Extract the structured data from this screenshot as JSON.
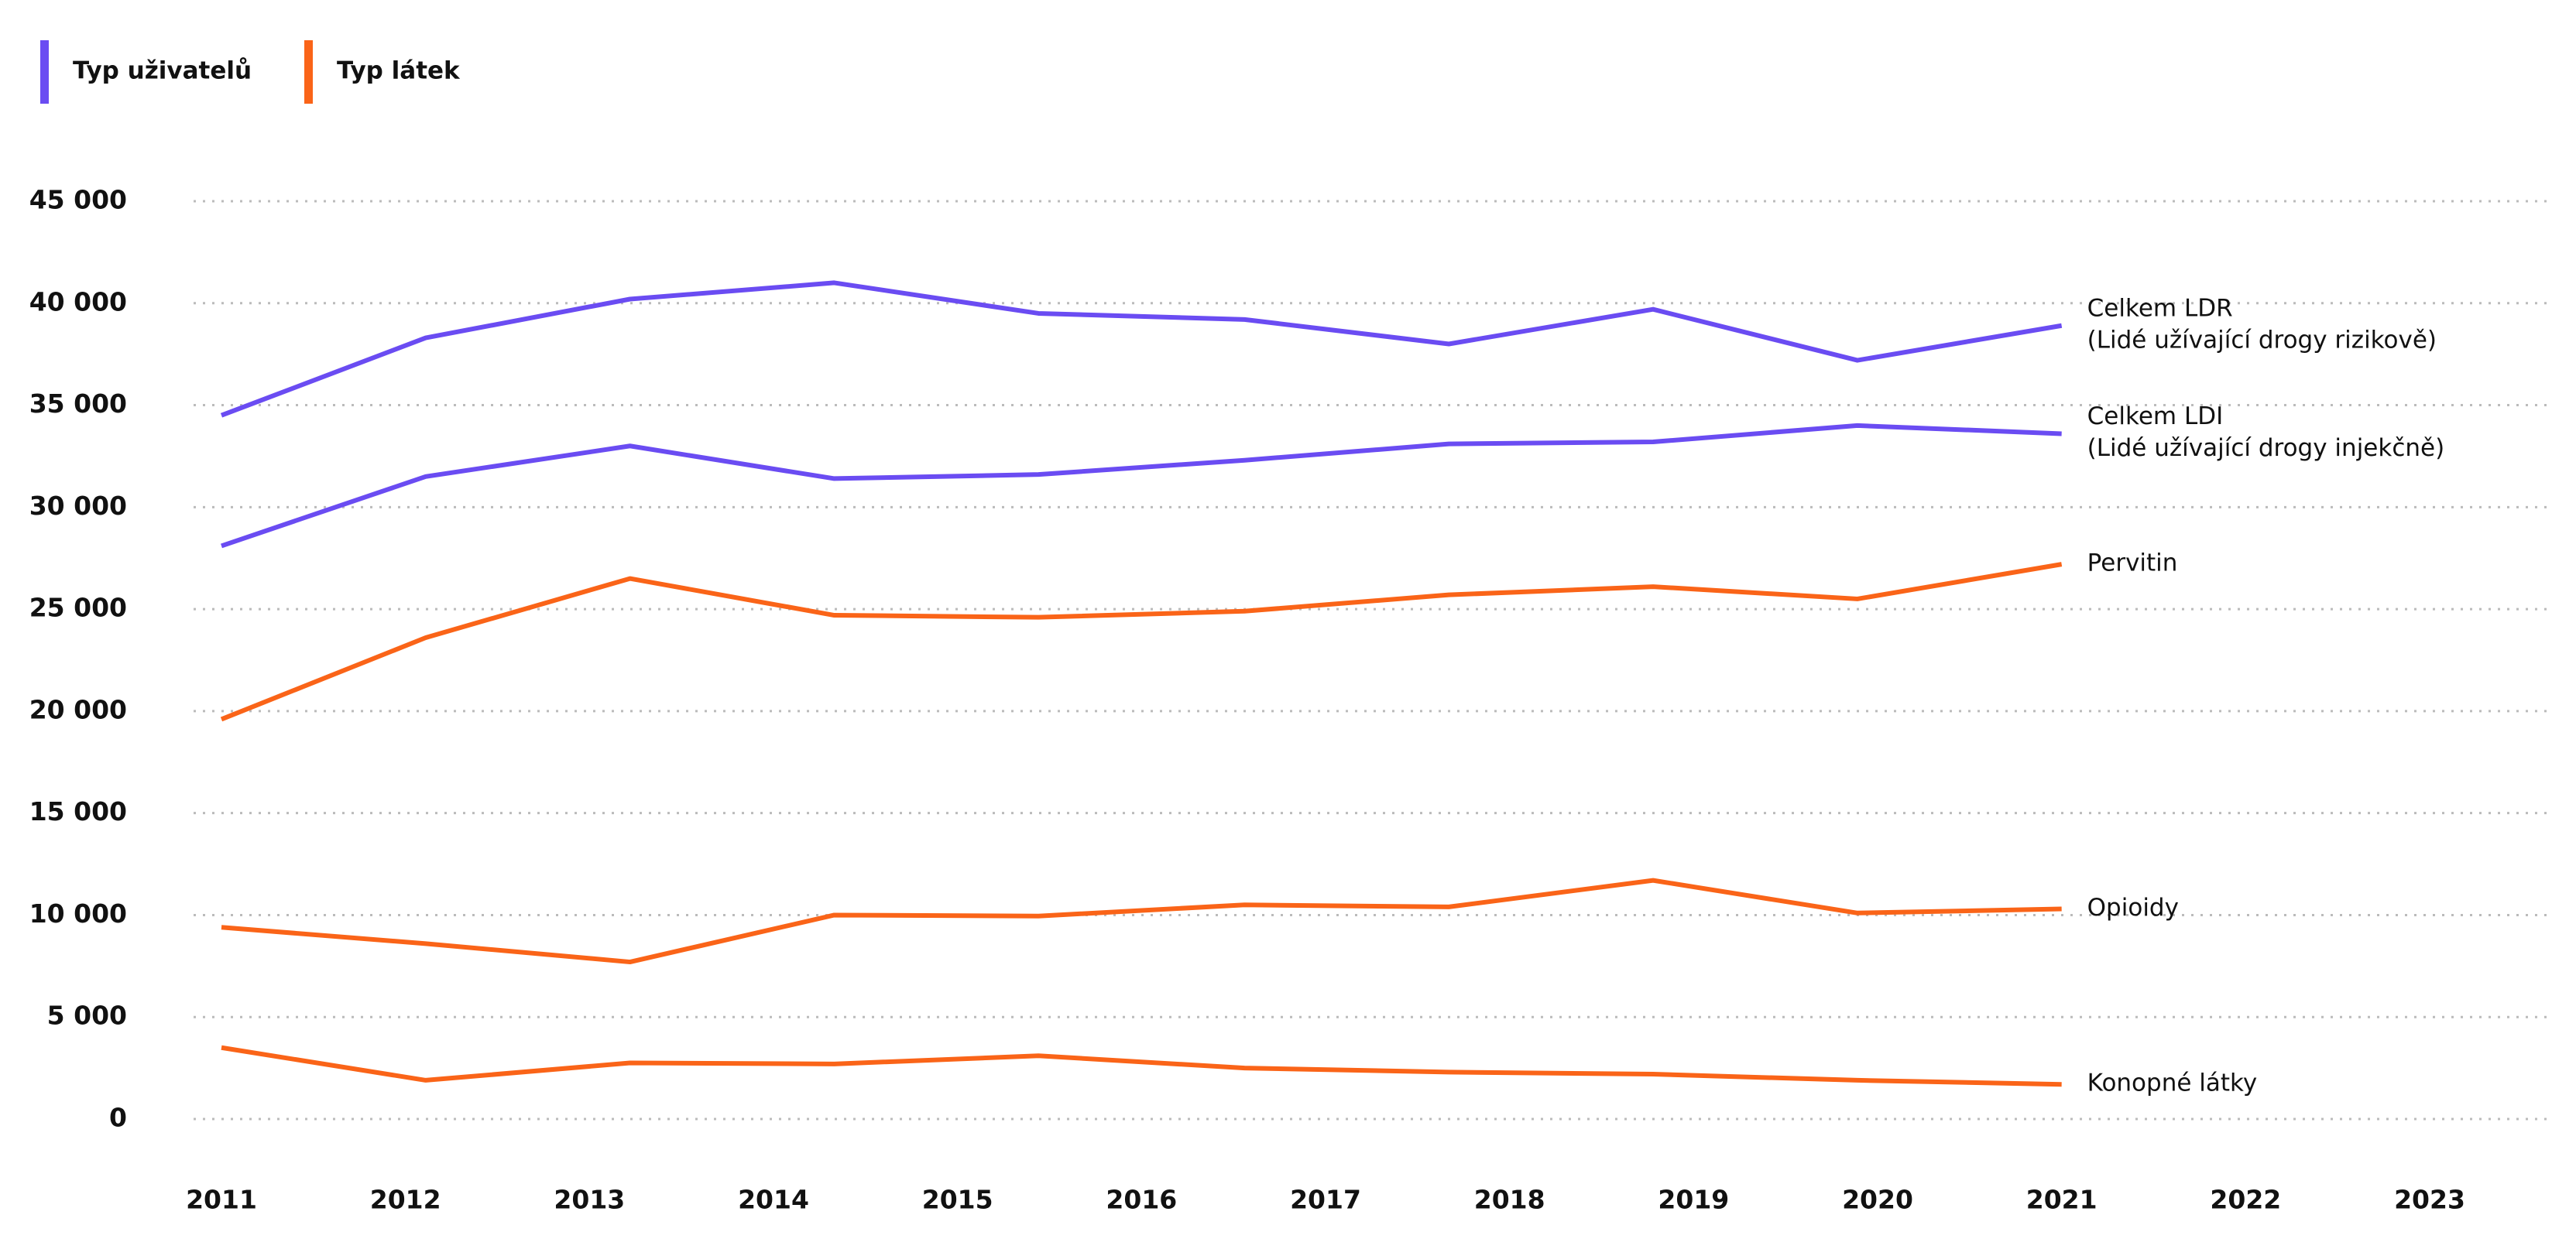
{
  "chart_data": {
    "type": "line",
    "legend": [
      {
        "name": "Typ uživatelů",
        "color": "#6a4cf2"
      },
      {
        "name": "Typ látek",
        "color": "#fa6418"
      }
    ],
    "xlim": [
      2011,
      2023
    ],
    "xticks": [
      2011,
      2012,
      2013,
      2014,
      2015,
      2016,
      2017,
      2018,
      2019,
      2020,
      2021,
      2022,
      2023
    ],
    "x": [
      2011,
      2012.11,
      2013.22,
      2014.33,
      2015.44,
      2016.56,
      2017.67,
      2018.78,
      2019.89,
      2021
    ],
    "ylim": [
      0,
      45000
    ],
    "yticks": [
      0,
      {
        "value": 5000,
        "label": "5 000"
      },
      {
        "value": 10000,
        "label": "10 000"
      },
      {
        "value": 15000,
        "label": "15 000"
      },
      {
        "value": 20000,
        "label": "20 000"
      },
      {
        "value": 25000,
        "label": "25 000"
      },
      {
        "value": 30000,
        "label": "30 000"
      },
      {
        "value": 35000,
        "label": "35 000"
      },
      {
        "value": 40000,
        "label": "40 000"
      },
      {
        "value": 45000,
        "label": "45 000"
      }
    ],
    "grid": true,
    "series": [
      {
        "name": "Celkem LDR",
        "description": "(Lidé užívající drogy rizikově)",
        "color": "#6a4cf2",
        "values": [
          34500,
          38300,
          40200,
          41000,
          39500,
          39200,
          38000,
          39700,
          37200,
          38900
        ]
      },
      {
        "name": "Celkem LDI",
        "description": "(Lidé užívající drogy injekčně)",
        "color": "#6a4cf2",
        "values": [
          28100,
          31500,
          33000,
          31400,
          31600,
          32300,
          33100,
          33200,
          34000,
          33600
        ]
      },
      {
        "name": "Pervitin",
        "color": "#fa6418",
        "values": [
          19600,
          23600,
          26500,
          24700,
          24600,
          24900,
          25700,
          26100,
          25500,
          27200
        ]
      },
      {
        "name": "Opioidy",
        "color": "#fa6418",
        "values": [
          9400,
          8600,
          7700,
          10000,
          9950,
          10500,
          10400,
          11700,
          10100,
          10300
        ]
      },
      {
        "name": "Konopné látky",
        "color": "#fa6418",
        "values": [
          3500,
          1900,
          2750,
          2700,
          3100,
          2500,
          2300,
          2200,
          1900,
          1700
        ]
      }
    ]
  }
}
